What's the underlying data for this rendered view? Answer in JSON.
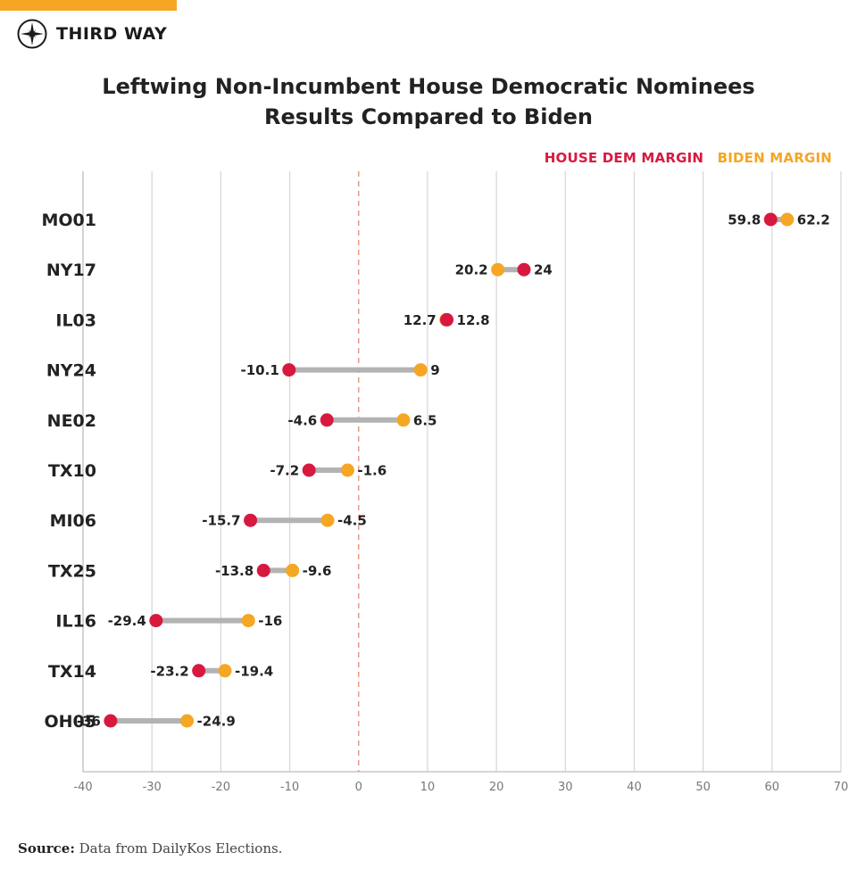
{
  "brand": {
    "name": "THIRD WAY",
    "logo_icon": "compass-star-icon"
  },
  "chart_data": {
    "type": "dumbbell",
    "title": "Leftwing Non-Incumbent House Democratic Nominees\nResults Compared to Biden",
    "title_lines": [
      "Leftwing Non-Incumbent House Democratic Nominees",
      "Results Compared to Biden"
    ],
    "categories": [
      "MO01",
      "NY17",
      "IL03",
      "NY24",
      "NE02",
      "TX10",
      "MI06",
      "TX25",
      "IL16",
      "TX14",
      "OH05"
    ],
    "series": [
      {
        "name": "HOUSE DEM MARGIN",
        "color": "#d7193f",
        "values": [
          59.8,
          24,
          12.8,
          -10.1,
          -4.6,
          -7.2,
          -15.7,
          -13.8,
          -29.4,
          -23.2,
          -36
        ]
      },
      {
        "name": "BIDEN MARGIN",
        "color": "#f5a623",
        "values": [
          62.2,
          20.2,
          12.7,
          9,
          6.5,
          -1.6,
          -4.5,
          -9.6,
          -16,
          -19.4,
          -24.9
        ]
      }
    ],
    "xlim": [
      -40,
      70
    ],
    "xticks": [
      "-40",
      "-30",
      "-20",
      "-10",
      "0",
      "10",
      "20",
      "30",
      "40",
      "50",
      "60",
      "70"
    ],
    "reference_line": 0,
    "grid": true,
    "legend_position": "top-right",
    "xlabel": "",
    "ylabel": ""
  },
  "source": {
    "label": "Source:",
    "text": " Data from DailyKos Elections."
  }
}
